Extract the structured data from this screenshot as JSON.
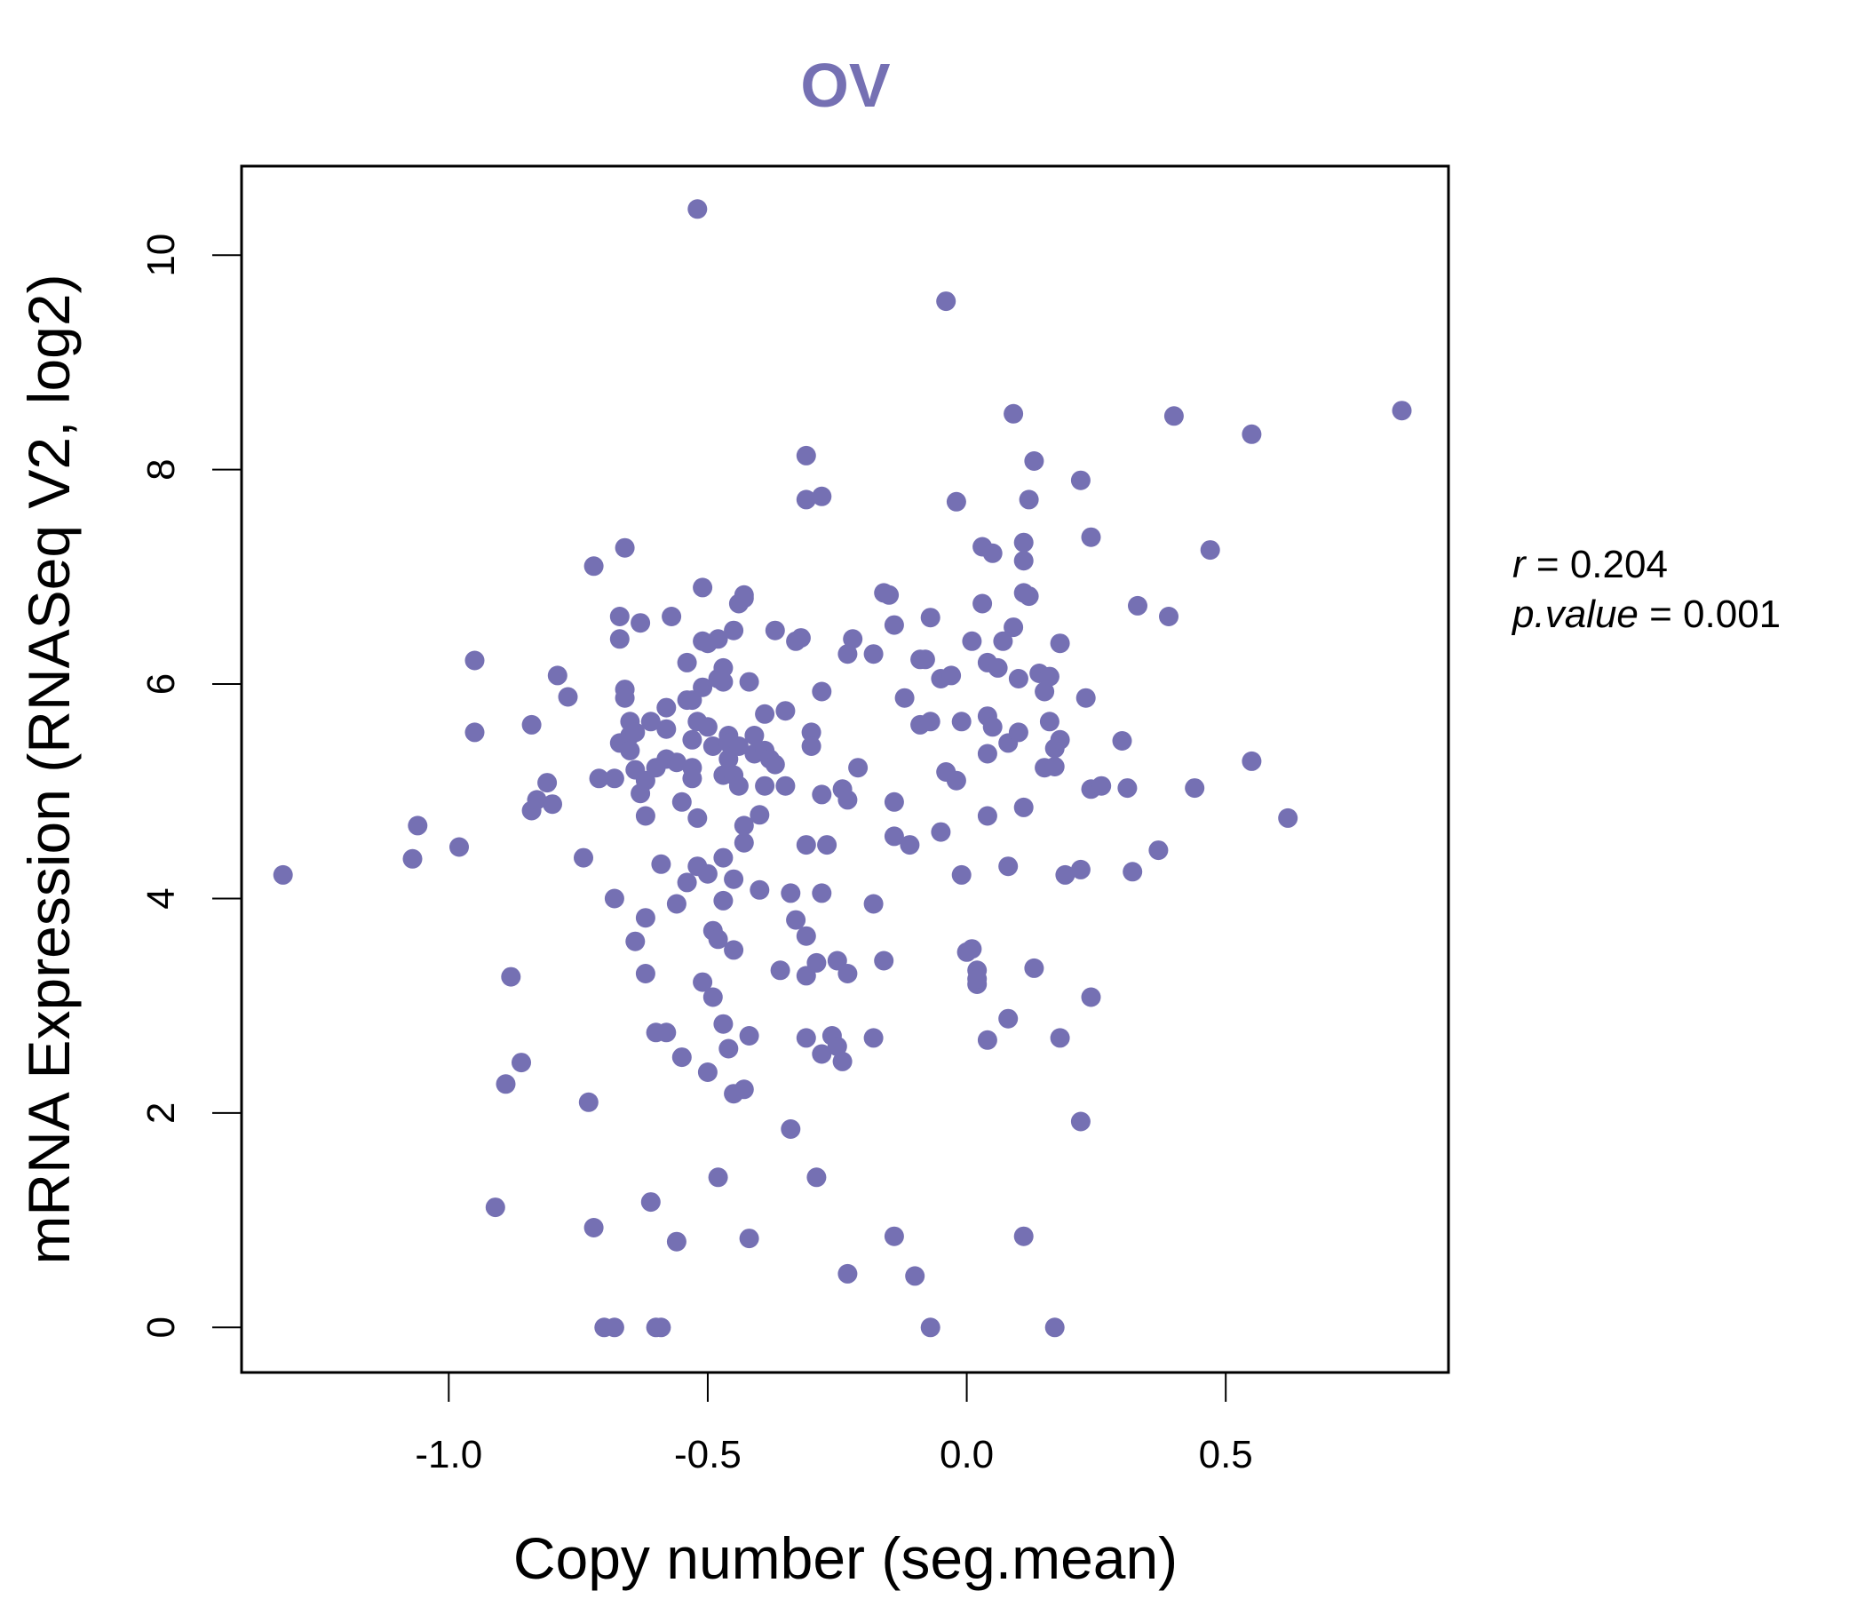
{
  "colors": {
    "accent": "#7570b3",
    "axis": "#000000"
  },
  "chart_data": {
    "type": "scatter",
    "title": "OV",
    "xlabel": "Copy number (seg.mean)",
    "ylabel": "mRNA Expression (RNASeq V2, log2)",
    "xlim": [
      -1.4,
      0.93
    ],
    "ylim": [
      -0.42,
      10.83
    ],
    "x_ticks": [
      -1.0,
      -0.5,
      0.0,
      0.5
    ],
    "x_tick_labels": [
      "-1.0",
      "-0.5",
      "0.0",
      "0.5"
    ],
    "y_ticks": [
      0,
      2,
      4,
      6,
      8,
      10
    ],
    "y_tick_labels": [
      "0",
      "2",
      "4",
      "6",
      "8",
      "10"
    ],
    "stats": {
      "r_label": "r",
      "r_value": "0.204",
      "p_label": "p.value",
      "p_value": "0.001"
    },
    "points": [
      [
        -1.32,
        4.22
      ],
      [
        -1.07,
        4.37
      ],
      [
        -1.06,
        4.68
      ],
      [
        -0.98,
        4.48
      ],
      [
        -0.95,
        6.22
      ],
      [
        -0.95,
        5.55
      ],
      [
        -0.91,
        1.12
      ],
      [
        -0.89,
        2.27
      ],
      [
        -0.88,
        3.27
      ],
      [
        -0.86,
        2.47
      ],
      [
        -0.84,
        4.82
      ],
      [
        -0.84,
        5.62
      ],
      [
        -0.83,
        4.92
      ],
      [
        -0.81,
        5.08
      ],
      [
        -0.8,
        4.88
      ],
      [
        -0.79,
        6.08
      ],
      [
        -0.77,
        5.88
      ],
      [
        -0.74,
        4.38
      ],
      [
        -0.73,
        2.1
      ],
      [
        -0.72,
        0.93
      ],
      [
        -0.72,
        7.1
      ],
      [
        -0.71,
        5.12
      ],
      [
        -0.7,
        0.0
      ],
      [
        -0.68,
        0.0
      ],
      [
        -0.68,
        5.12
      ],
      [
        -0.68,
        4.0
      ],
      [
        -0.67,
        5.45
      ],
      [
        -0.67,
        6.42
      ],
      [
        -0.67,
        6.63
      ],
      [
        -0.66,
        7.27
      ],
      [
        -0.66,
        5.95
      ],
      [
        -0.66,
        5.87
      ],
      [
        -0.65,
        5.65
      ],
      [
        -0.65,
        5.52
      ],
      [
        -0.65,
        5.38
      ],
      [
        -0.64,
        3.6
      ],
      [
        -0.64,
        5.55
      ],
      [
        -0.64,
        5.2
      ],
      [
        -0.63,
        6.57
      ],
      [
        -0.63,
        4.98
      ],
      [
        -0.62,
        3.82
      ],
      [
        -0.62,
        5.1
      ],
      [
        -0.62,
        3.3
      ],
      [
        -0.62,
        4.77
      ],
      [
        -0.61,
        1.17
      ],
      [
        -0.61,
        5.65
      ],
      [
        -0.6,
        5.22
      ],
      [
        -0.6,
        2.75
      ],
      [
        -0.6,
        0.0
      ],
      [
        -0.59,
        4.32
      ],
      [
        -0.59,
        0.0
      ],
      [
        -0.58,
        5.78
      ],
      [
        -0.58,
        2.75
      ],
      [
        -0.58,
        5.58
      ],
      [
        -0.58,
        5.3
      ],
      [
        -0.57,
        6.63
      ],
      [
        -0.56,
        5.27
      ],
      [
        -0.56,
        3.95
      ],
      [
        -0.56,
        0.8
      ],
      [
        -0.55,
        4.9
      ],
      [
        -0.55,
        2.52
      ],
      [
        -0.54,
        5.85
      ],
      [
        -0.54,
        6.2
      ],
      [
        -0.54,
        4.15
      ],
      [
        -0.53,
        5.85
      ],
      [
        -0.53,
        5.22
      ],
      [
        -0.53,
        5.12
      ],
      [
        -0.53,
        5.48
      ],
      [
        -0.52,
        4.75
      ],
      [
        -0.52,
        4.3
      ],
      [
        -0.52,
        5.65
      ],
      [
        -0.52,
        10.43
      ],
      [
        -0.51,
        3.22
      ],
      [
        -0.51,
        6.4
      ],
      [
        -0.51,
        6.9
      ],
      [
        -0.51,
        5.97
      ],
      [
        -0.5,
        6.38
      ],
      [
        -0.5,
        2.38
      ],
      [
        -0.5,
        4.23
      ],
      [
        -0.5,
        5.6
      ],
      [
        -0.49,
        3.08
      ],
      [
        -0.49,
        3.7
      ],
      [
        -0.49,
        5.42
      ],
      [
        -0.48,
        3.62
      ],
      [
        -0.48,
        6.05
      ],
      [
        -0.48,
        1.4
      ],
      [
        -0.48,
        6.42
      ],
      [
        -0.47,
        5.15
      ],
      [
        -0.47,
        6.15
      ],
      [
        -0.47,
        6.02
      ],
      [
        -0.47,
        3.98
      ],
      [
        -0.47,
        4.38
      ],
      [
        -0.47,
        2.83
      ],
      [
        -0.46,
        2.6
      ],
      [
        -0.46,
        5.3
      ],
      [
        -0.46,
        5.52
      ],
      [
        -0.46,
        5.45
      ],
      [
        -0.45,
        4.18
      ],
      [
        -0.45,
        5.15
      ],
      [
        -0.45,
        6.5
      ],
      [
        -0.45,
        3.52
      ],
      [
        -0.45,
        2.18
      ],
      [
        -0.44,
        5.42
      ],
      [
        -0.44,
        6.75
      ],
      [
        -0.44,
        5.05
      ],
      [
        -0.43,
        6.83
      ],
      [
        -0.43,
        6.8
      ],
      [
        -0.43,
        2.22
      ],
      [
        -0.43,
        4.52
      ],
      [
        -0.43,
        4.68
      ],
      [
        -0.42,
        6.02
      ],
      [
        -0.42,
        0.83
      ],
      [
        -0.42,
        2.72
      ],
      [
        -0.41,
        5.52
      ],
      [
        -0.41,
        5.35
      ],
      [
        -0.4,
        4.08
      ],
      [
        -0.4,
        4.78
      ],
      [
        -0.39,
        5.72
      ],
      [
        -0.39,
        5.05
      ],
      [
        -0.39,
        5.38
      ],
      [
        -0.38,
        5.3
      ],
      [
        -0.37,
        6.5
      ],
      [
        -0.37,
        5.25
      ],
      [
        -0.36,
        3.33
      ],
      [
        -0.35,
        5.75
      ],
      [
        -0.35,
        5.05
      ],
      [
        -0.34,
        4.05
      ],
      [
        -0.34,
        1.85
      ],
      [
        -0.33,
        3.8
      ],
      [
        -0.33,
        6.4
      ],
      [
        -0.32,
        6.43
      ],
      [
        -0.31,
        8.13
      ],
      [
        -0.31,
        7.72
      ],
      [
        -0.31,
        4.5
      ],
      [
        -0.31,
        2.7
      ],
      [
        -0.31,
        3.65
      ],
      [
        -0.31,
        3.28
      ],
      [
        -0.3,
        5.55
      ],
      [
        -0.3,
        5.42
      ],
      [
        -0.29,
        1.4
      ],
      [
        -0.29,
        3.4
      ],
      [
        -0.28,
        7.75
      ],
      [
        -0.28,
        5.93
      ],
      [
        -0.28,
        4.97
      ],
      [
        -0.28,
        2.55
      ],
      [
        -0.28,
        4.05
      ],
      [
        -0.27,
        4.5
      ],
      [
        -0.26,
        2.72
      ],
      [
        -0.25,
        2.62
      ],
      [
        -0.25,
        3.42
      ],
      [
        -0.24,
        2.48
      ],
      [
        -0.24,
        5.02
      ],
      [
        -0.23,
        6.28
      ],
      [
        -0.23,
        4.92
      ],
      [
        -0.23,
        0.5
      ],
      [
        -0.23,
        3.3
      ],
      [
        -0.22,
        6.42
      ],
      [
        -0.21,
        5.22
      ],
      [
        -0.18,
        6.28
      ],
      [
        -0.18,
        3.95
      ],
      [
        -0.18,
        2.7
      ],
      [
        -0.16,
        6.85
      ],
      [
        -0.16,
        3.42
      ],
      [
        -0.15,
        6.83
      ],
      [
        -0.14,
        4.9
      ],
      [
        -0.14,
        4.58
      ],
      [
        -0.14,
        0.85
      ],
      [
        -0.14,
        6.55
      ],
      [
        -0.12,
        5.87
      ],
      [
        -0.11,
        4.5
      ],
      [
        -0.1,
        0.48
      ],
      [
        -0.09,
        5.62
      ],
      [
        -0.09,
        6.23
      ],
      [
        -0.08,
        6.23
      ],
      [
        -0.07,
        6.62
      ],
      [
        -0.07,
        0.0
      ],
      [
        -0.07,
        5.65
      ],
      [
        -0.05,
        6.05
      ],
      [
        -0.05,
        4.62
      ],
      [
        -0.04,
        9.57
      ],
      [
        -0.04,
        5.18
      ],
      [
        -0.03,
        6.08
      ],
      [
        -0.02,
        7.7
      ],
      [
        -0.02,
        5.1
      ],
      [
        -0.01,
        4.22
      ],
      [
        -0.01,
        5.65
      ],
      [
        0.0,
        3.5
      ],
      [
        0.01,
        3.53
      ],
      [
        0.01,
        6.4
      ],
      [
        0.02,
        3.33
      ],
      [
        0.02,
        3.2
      ],
      [
        0.02,
        3.25
      ],
      [
        0.03,
        6.75
      ],
      [
        0.03,
        7.28
      ],
      [
        0.04,
        6.2
      ],
      [
        0.04,
        5.7
      ],
      [
        0.04,
        4.77
      ],
      [
        0.04,
        5.35
      ],
      [
        0.04,
        2.68
      ],
      [
        0.05,
        7.22
      ],
      [
        0.05,
        5.6
      ],
      [
        0.06,
        6.15
      ],
      [
        0.07,
        6.4
      ],
      [
        0.08,
        4.3
      ],
      [
        0.08,
        5.45
      ],
      [
        0.08,
        2.88
      ],
      [
        0.09,
        8.52
      ],
      [
        0.09,
        6.53
      ],
      [
        0.1,
        6.05
      ],
      [
        0.1,
        5.55
      ],
      [
        0.11,
        7.15
      ],
      [
        0.11,
        7.32
      ],
      [
        0.11,
        6.85
      ],
      [
        0.11,
        4.85
      ],
      [
        0.11,
        0.85
      ],
      [
        0.12,
        7.72
      ],
      [
        0.12,
        6.82
      ],
      [
        0.13,
        8.08
      ],
      [
        0.13,
        3.35
      ],
      [
        0.14,
        6.1
      ],
      [
        0.15,
        5.22
      ],
      [
        0.15,
        5.93
      ],
      [
        0.16,
        5.65
      ],
      [
        0.16,
        6.07
      ],
      [
        0.17,
        5.4
      ],
      [
        0.17,
        5.23
      ],
      [
        0.17,
        0.0
      ],
      [
        0.18,
        5.48
      ],
      [
        0.18,
        6.38
      ],
      [
        0.18,
        2.7
      ],
      [
        0.19,
        4.22
      ],
      [
        0.22,
        4.27
      ],
      [
        0.22,
        7.9
      ],
      [
        0.22,
        1.92
      ],
      [
        0.23,
        5.87
      ],
      [
        0.24,
        7.37
      ],
      [
        0.24,
        5.02
      ],
      [
        0.24,
        3.08
      ],
      [
        0.26,
        5.05
      ],
      [
        0.3,
        5.47
      ],
      [
        0.31,
        5.03
      ],
      [
        0.32,
        4.25
      ],
      [
        0.33,
        6.73
      ],
      [
        0.37,
        4.45
      ],
      [
        0.39,
        6.63
      ],
      [
        0.4,
        8.5
      ],
      [
        0.44,
        5.03
      ],
      [
        0.47,
        7.25
      ],
      [
        0.55,
        8.33
      ],
      [
        0.55,
        5.28
      ],
      [
        0.62,
        4.75
      ],
      [
        0.84,
        8.55
      ]
    ]
  }
}
